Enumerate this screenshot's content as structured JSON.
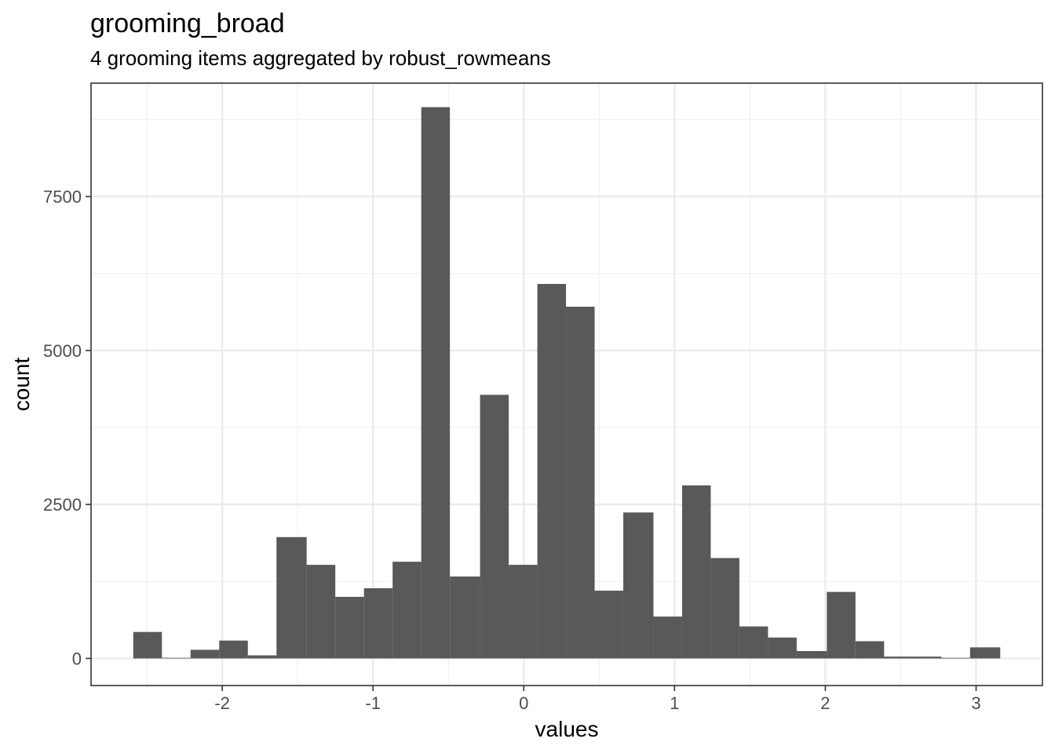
{
  "chart_data": {
    "type": "bar",
    "title": "grooming_broad",
    "subtitle": "4 grooming items aggregated by robust_rowmeans",
    "xlabel": "values",
    "ylabel": "count",
    "xlim": [
      -2.87,
      3.44
    ],
    "ylim": [
      -440,
      9340
    ],
    "x_ticks": [
      {
        "value": -2,
        "label": "-2"
      },
      {
        "value": -1,
        "label": "-1"
      },
      {
        "value": 0,
        "label": "0"
      },
      {
        "value": 1,
        "label": "1"
      },
      {
        "value": 2,
        "label": "2"
      },
      {
        "value": 3,
        "label": "3"
      }
    ],
    "y_ticks": [
      {
        "value": 0,
        "label": "0"
      },
      {
        "value": 2500,
        "label": "2500"
      },
      {
        "value": 5000,
        "label": "5000"
      },
      {
        "value": 7500,
        "label": "7500"
      }
    ],
    "grid": true,
    "bar_color": "#595959",
    "bins": [
      {
        "x0": -2.59,
        "x1": -2.4,
        "count": 430
      },
      {
        "x0": -2.4,
        "x1": -2.21,
        "count": 10
      },
      {
        "x0": -2.21,
        "x1": -2.02,
        "count": 140
      },
      {
        "x0": -2.02,
        "x1": -1.83,
        "count": 290
      },
      {
        "x0": -1.83,
        "x1": -1.64,
        "count": 50
      },
      {
        "x0": -1.64,
        "x1": -1.44,
        "count": 1970
      },
      {
        "x0": -1.44,
        "x1": -1.25,
        "count": 1520
      },
      {
        "x0": -1.25,
        "x1": -1.06,
        "count": 1000
      },
      {
        "x0": -1.06,
        "x1": -0.87,
        "count": 1140
      },
      {
        "x0": -0.87,
        "x1": -0.68,
        "count": 1570
      },
      {
        "x0": -0.68,
        "x1": -0.49,
        "count": 8950
      },
      {
        "x0": -0.49,
        "x1": -0.29,
        "count": 1330
      },
      {
        "x0": -0.29,
        "x1": -0.1,
        "count": 4280
      },
      {
        "x0": -0.1,
        "x1": 0.09,
        "count": 1520
      },
      {
        "x0": 0.09,
        "x1": 0.28,
        "count": 6080
      },
      {
        "x0": 0.28,
        "x1": 0.47,
        "count": 5710
      },
      {
        "x0": 0.47,
        "x1": 0.66,
        "count": 1100
      },
      {
        "x0": 0.66,
        "x1": 0.86,
        "count": 2370
      },
      {
        "x0": 0.86,
        "x1": 1.05,
        "count": 680
      },
      {
        "x0": 1.05,
        "x1": 1.24,
        "count": 2810
      },
      {
        "x0": 1.24,
        "x1": 1.43,
        "count": 1630
      },
      {
        "x0": 1.43,
        "x1": 1.62,
        "count": 520
      },
      {
        "x0": 1.62,
        "x1": 1.81,
        "count": 340
      },
      {
        "x0": 1.81,
        "x1": 2.01,
        "count": 120
      },
      {
        "x0": 2.01,
        "x1": 2.2,
        "count": 1080
      },
      {
        "x0": 2.2,
        "x1": 2.39,
        "count": 280
      },
      {
        "x0": 2.39,
        "x1": 2.58,
        "count": 30
      },
      {
        "x0": 2.58,
        "x1": 2.77,
        "count": 30
      },
      {
        "x0": 2.77,
        "x1": 2.96,
        "count": 10
      },
      {
        "x0": 2.96,
        "x1": 3.16,
        "count": 180
      }
    ]
  }
}
